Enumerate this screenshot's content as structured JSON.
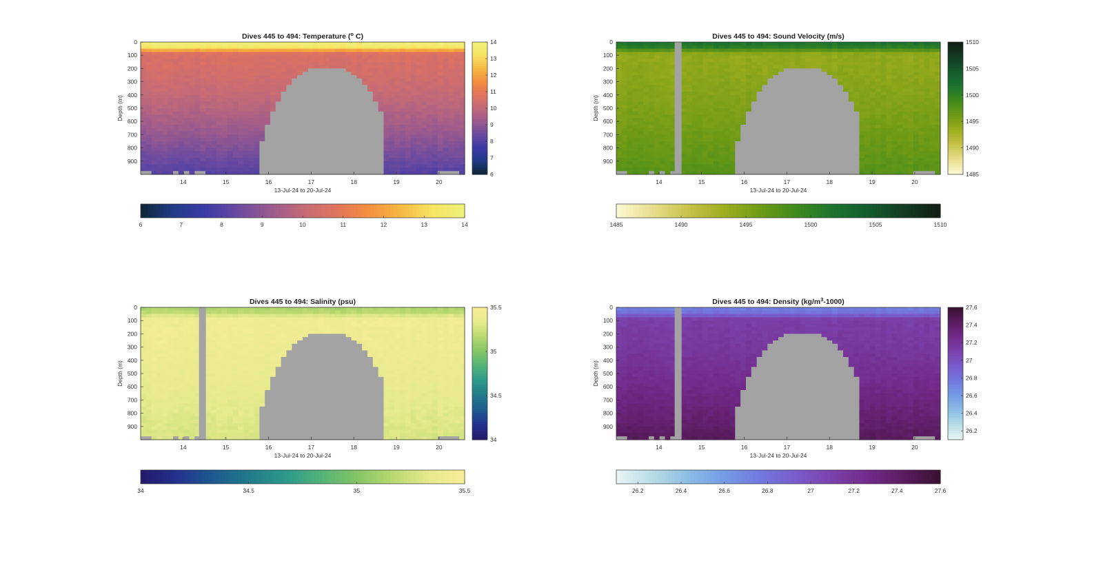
{
  "figure": {
    "x_range_label": "13-Jul-24 to 20-Jul-24"
  },
  "colors": {
    "mask": "#a3a3a3",
    "temperature": [
      "#0f2535",
      "#203a86",
      "#3b3aa6",
      "#6a4aa0",
      "#9a5a8e",
      "#c26a78",
      "#e0735f",
      "#f48e40",
      "#f6b842",
      "#f7e463",
      "#eef17a"
    ],
    "sound_velocity": [
      "#fdf9d5",
      "#e8de8f",
      "#c6c24a",
      "#9ead1f",
      "#6e9a16",
      "#3f8a1c",
      "#1c7430",
      "#145a2e",
      "#143b22",
      "#111d14"
    ],
    "salinity": [
      "#231a6b",
      "#24308f",
      "#1d5a8f",
      "#227a8a",
      "#2c988a",
      "#52b379",
      "#84c566",
      "#b8d870",
      "#e6ea8e",
      "#f8ed99"
    ],
    "density": [
      "#e9f5f5",
      "#b8dce5",
      "#8cbde5",
      "#749ce6",
      "#7278dd",
      "#7a5ccc",
      "#7b41aa",
      "#722a8a",
      "#5b1c60",
      "#3a1131"
    ]
  },
  "chart_data": [
    {
      "id": "temperature",
      "type": "heatmap",
      "title": "Dives 445 to 494: Temperature (° C)",
      "title_main": "Dives 445 to 494: Temperature (",
      "title_sup": "o",
      "title_tail": " C)",
      "xlabel": "13-Jul-24 to 20-Jul-24",
      "ylabel": "Depth (m)",
      "x_ticks": [
        "14",
        "15",
        "16",
        "17",
        "18",
        "19",
        "20"
      ],
      "y_ticks": [
        "0",
        "100",
        "200",
        "300",
        "400",
        "500",
        "600",
        "700",
        "800",
        "900"
      ],
      "xlim_days": [
        13.0,
        20.6
      ],
      "ylim": [
        0,
        1000
      ],
      "colorbar_ticks": [
        "6",
        "7",
        "8",
        "9",
        "10",
        "11",
        "12",
        "13",
        "14"
      ],
      "clim": [
        6,
        14
      ],
      "profile": {
        "surface": 13.8,
        "mixed": 10.6,
        "deep": 8.0
      },
      "colorbar_orientation_side": "vertical",
      "colorbar_bottom": "horizontal"
    },
    {
      "id": "sound_velocity",
      "type": "heatmap",
      "title": "Dives 445 to 494: Sound Velocity (m/s)",
      "title_main": "Dives 445 to 494: Sound Velocity (m/s)",
      "title_sup": "",
      "title_tail": "",
      "xlabel": "13-Jul-24 to 20-Jul-24",
      "ylabel": "Depth (m)",
      "x_ticks": [
        "14",
        "15",
        "16",
        "17",
        "18",
        "19",
        "20"
      ],
      "y_ticks": [
        "0",
        "100",
        "200",
        "300",
        "400",
        "500",
        "600",
        "700",
        "800",
        "900"
      ],
      "xlim_days": [
        13.0,
        20.6
      ],
      "ylim": [
        0,
        1000
      ],
      "colorbar_ticks": [
        "1485",
        "1490",
        "1495",
        "1500",
        "1505",
        "1510"
      ],
      "side_colorbar_ticks": [
        "1510",
        "1505",
        "1500",
        "1495",
        "1490",
        "1485"
      ],
      "clim": [
        1485,
        1510
      ],
      "profile": {
        "surface": 1501.5,
        "mixed": 1494.0,
        "deep": 1497.5
      },
      "colorbar_orientation_side": "vertical",
      "colorbar_bottom": "horizontal"
    },
    {
      "id": "salinity",
      "type": "heatmap",
      "title": "Dives 445 to 494: Salinity (psu)",
      "title_main": "Dives 445 to 494: Salinity (psu)",
      "title_sup": "",
      "title_tail": "",
      "xlabel": "13-Jul-24 to 20-Jul-24",
      "ylabel": "Depth (m)",
      "x_ticks": [
        "14",
        "15",
        "16",
        "17",
        "18",
        "19",
        "20"
      ],
      "y_ticks": [
        "0",
        "100",
        "200",
        "300",
        "400",
        "500",
        "600",
        "700",
        "800",
        "900"
      ],
      "xlim_days": [
        13.0,
        20.6
      ],
      "ylim": [
        0,
        1000
      ],
      "colorbar_ticks": [
        "34",
        "34.5",
        "35",
        "35.5"
      ],
      "side_colorbar_ticks": [
        "35.5",
        "35",
        "34.5",
        "34"
      ],
      "clim": [
        34,
        35.5
      ],
      "profile": {
        "surface": 35.15,
        "mixed": 35.42,
        "deep": 35.28
      },
      "colorbar_orientation_side": "vertical",
      "colorbar_bottom": "horizontal"
    },
    {
      "id": "density",
      "type": "heatmap",
      "title": "Dives 445 to 494: Density (kg/m³-1000)",
      "title_main": "Dives 445 to 494: Density (kg/m",
      "title_sup": "3",
      "title_tail": "-1000)",
      "xlabel": "13-Jul-24 to 20-Jul-24",
      "ylabel": "Depth (m)",
      "x_ticks": [
        "14",
        "15",
        "16",
        "17",
        "18",
        "19",
        "20"
      ],
      "y_ticks": [
        "0",
        "100",
        "200",
        "300",
        "400",
        "500",
        "600",
        "700",
        "800",
        "900"
      ],
      "xlim_days": [
        13.0,
        20.6
      ],
      "ylim": [
        0,
        1000
      ],
      "colorbar_ticks": [
        "26.2",
        "26.4",
        "26.6",
        "26.8",
        "27",
        "27.2",
        "27.4",
        "27.6"
      ],
      "side_colorbar_ticks": [
        "27.6",
        "27.4",
        "27.2",
        "27",
        "26.8",
        "26.6",
        "26.4",
        "26.2"
      ],
      "clim": [
        26.1,
        27.6
      ],
      "profile": {
        "surface": 26.75,
        "mixed": 27.12,
        "deep": 27.45
      },
      "colorbar_orientation_side": "vertical",
      "colorbar_bottom": "horizontal"
    }
  ]
}
